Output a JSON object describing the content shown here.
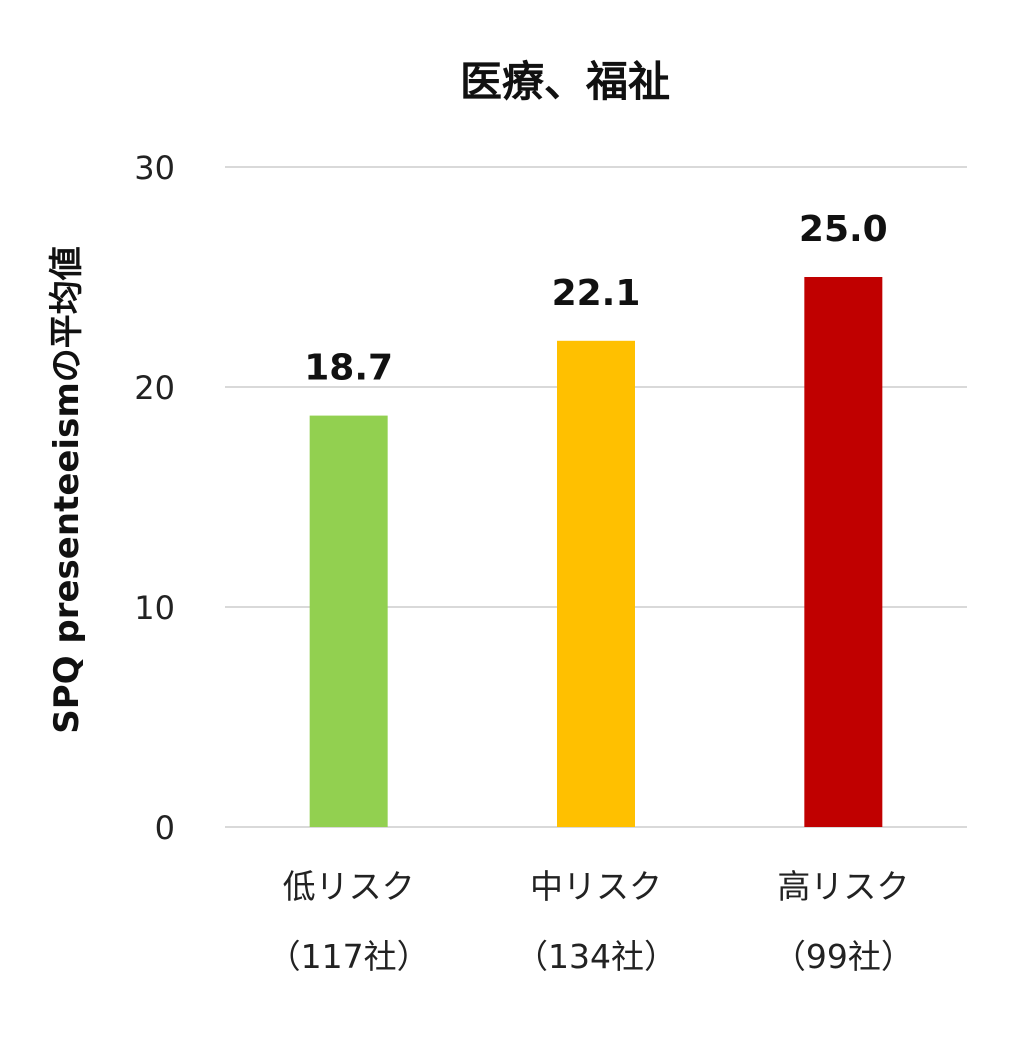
{
  "chart_data": {
    "type": "bar",
    "title": "医療、福祉",
    "xlabel": "",
    "ylabel": "SPQ presenteeismの平均値",
    "ylim": [
      0,
      30
    ],
    "yticks": [
      0,
      10,
      20,
      30
    ],
    "grid": true,
    "legend": "none",
    "categories": [
      {
        "line1": "低リスク",
        "line2": "（117社）"
      },
      {
        "line1": "中リスク",
        "line2": "（134社）"
      },
      {
        "line1": "高リスク",
        "line2": "（99社）"
      }
    ],
    "values": [
      18.7,
      22.1,
      25.0
    ],
    "data_labels": [
      "18.7",
      "22.1",
      "25.0"
    ],
    "colors": [
      "#92d050",
      "#ffc000",
      "#c00000"
    ]
  }
}
